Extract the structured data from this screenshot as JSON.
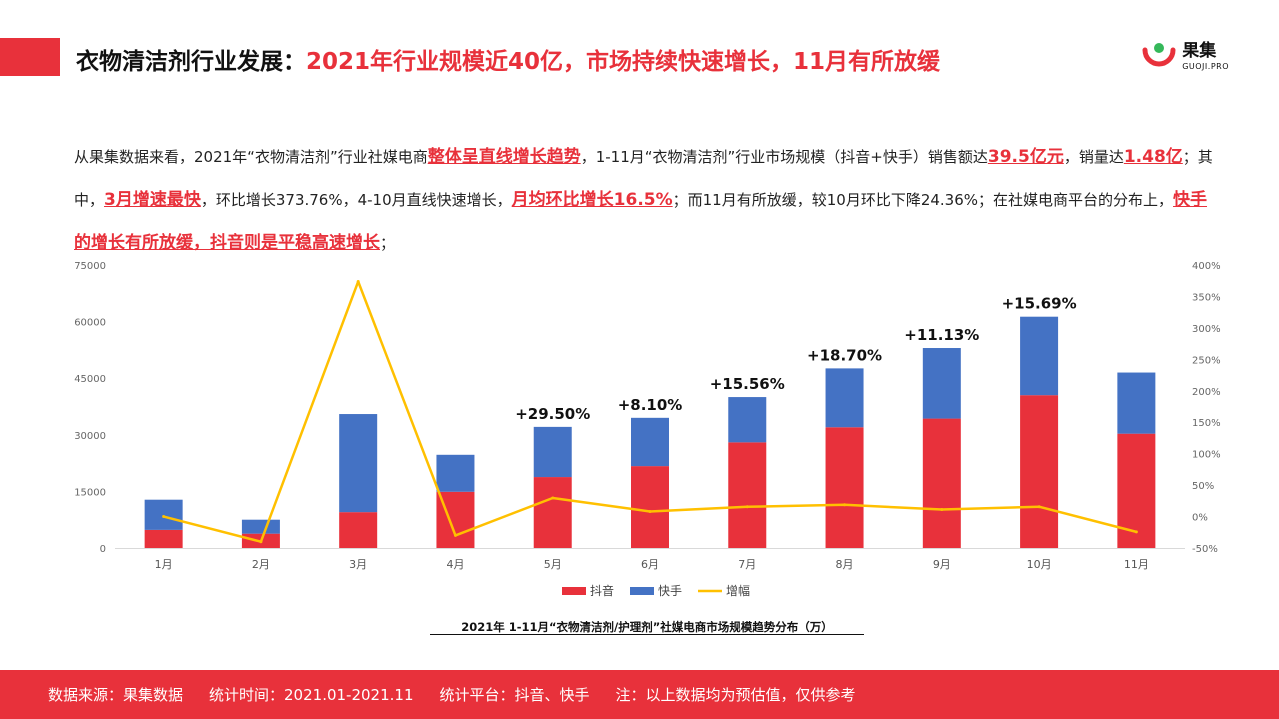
{
  "header": {
    "title_black": "衣物清洁剂行业发展：",
    "title_red": "2021年行业规模近40亿，市场持续快速增长，11月有所放缓",
    "logo_cn": "果集",
    "logo_en": "GUOJI.PRO"
  },
  "intro": {
    "p1": "从果集数据来看，2021年“衣物清洁剂”行业社媒电商",
    "h1": "整体呈直线增长趋势",
    "p2": "，1-11月“衣物清洁剂”行业市场规模（抖音+快手）销售额达",
    "h2": "39.5亿元",
    "p3": "，销量达",
    "h3": "1.48亿",
    "p4": "；其中，",
    "h4": "3月增速最快",
    "p5": "，环比增长373.76%，4-10月直线快速增长，",
    "h5": "月均环比增长16.5%",
    "p6": "；而11月有所放缓，较10月环比下降24.36%；在社媒电商平台的分布上，",
    "h6": "快手的增长有所放缓，抖音则是平稳高速增长",
    "p7": "；"
  },
  "chart_data": {
    "type": "bar",
    "stacked": true,
    "title": "2021年 1-11月“衣物清洁剂/护理剂”社媒电商市场规模趋势分布（万）",
    "categories": [
      "1月",
      "2月",
      "3月",
      "4月",
      "5月",
      "6月",
      "7月",
      "8月",
      "9月",
      "10月",
      "11月"
    ],
    "series": [
      {
        "name": "抖音",
        "type": "bar",
        "axis": "left",
        "color": "#e8313b",
        "values": [
          4800,
          3800,
          9500,
          14900,
          18800,
          21700,
          28000,
          32000,
          34300,
          40500,
          30300
        ]
      },
      {
        "name": "快手",
        "type": "bar",
        "axis": "left",
        "color": "#4472c4",
        "values": [
          8000,
          3700,
          26000,
          9800,
          13300,
          12800,
          12000,
          15600,
          18700,
          20800,
          16200
        ]
      },
      {
        "name": "增幅",
        "type": "line",
        "axis": "right",
        "color": "#ffc000",
        "values": [
          0,
          -40,
          373.76,
          -30,
          29.5,
          8.1,
          15.56,
          18.7,
          11.13,
          15.69,
          -24.36
        ]
      }
    ],
    "annotations": [
      {
        "category": "5月",
        "text": "+29.50%"
      },
      {
        "category": "6月",
        "text": "+8.10%"
      },
      {
        "category": "7月",
        "text": "+15.56%"
      },
      {
        "category": "8月",
        "text": "+18.70%"
      },
      {
        "category": "9月",
        "text": "+11.13%"
      },
      {
        "category": "10月",
        "text": "+15.69%"
      }
    ],
    "ylim_left": [
      0,
      75000
    ],
    "yticks_left": [
      0,
      15000,
      30000,
      45000,
      60000,
      75000
    ],
    "ylim_right": [
      -50,
      400
    ],
    "yticks_right": [
      -50,
      0,
      50,
      100,
      150,
      200,
      250,
      300,
      350,
      400
    ],
    "yticks_right_labels": [
      "-50%",
      "0%",
      "50%",
      "100%",
      "150%",
      "200%",
      "250%",
      "300%",
      "350%",
      "400%"
    ],
    "legend_position": "bottom",
    "grid": false
  },
  "footer": {
    "source": "数据来源：果集数据",
    "period": "统计时间：2021.01-2021.11",
    "platform": "统计平台：抖音、快手",
    "note": "注：以上数据均为预估值，仅供参考"
  }
}
